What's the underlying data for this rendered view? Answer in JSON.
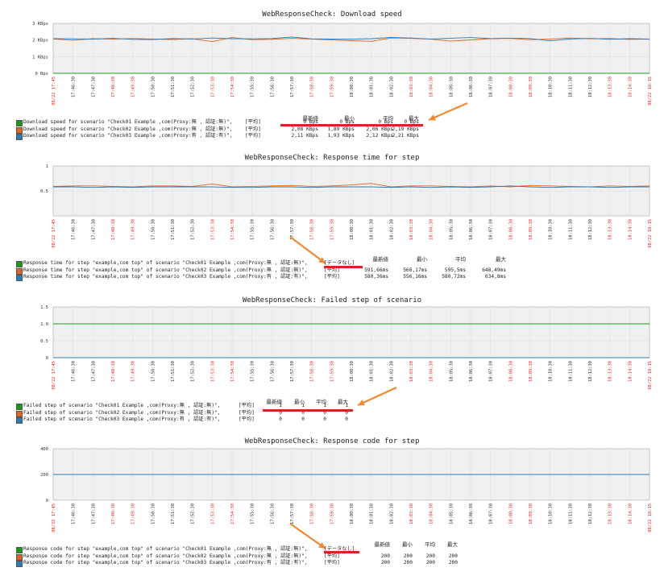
{
  "colors": {
    "green": "#1a9a1a",
    "red": "#e8621e",
    "blue": "#2b7bb9",
    "grid": "#c8c8c8",
    "plot_bg": "#f0f0f0",
    "axis_label": "#e03030",
    "highlight": "#e02020",
    "arrow": "#f08a30"
  },
  "time_labels": [
    "17:46:30",
    "17:47:30",
    "17:48:30",
    "17:49:30",
    "17:50:30",
    "17:51:30",
    "17:52:30",
    "17:53:30",
    "17:54:30",
    "17:55:30",
    "17:56:30",
    "17:57:30",
    "17:58:30",
    "17:59:30",
    "18:00:30",
    "18:01:30",
    "18:02:30",
    "18:03:30",
    "18:04:30",
    "18:05:30",
    "18:06:30",
    "18:07:30",
    "18:08:30",
    "18:09:30",
    "18:10:30",
    "18:11:30",
    "18:12:30",
    "18:13:30",
    "18:14:30"
  ],
  "time_start": "08/22 17:45",
  "time_end": "08/22 18:15",
  "chart_data": [
    {
      "type": "line",
      "title": "WebResponseCheck: Download speed",
      "yticks": [
        "0 Bps",
        "1 KBps",
        "2 KBps",
        "3 KBps"
      ],
      "ylim": [
        0,
        3000
      ],
      "series": [
        {
          "name": "Download speed for scenario \"Check01 Example ,com(Proxy:無 , 認証:無)\",",
          "color": "#1a9a1a",
          "agg": "[平均]",
          "stats": [
            "0 Bps",
            "0 Bps",
            "0 Bps",
            "0 Bps"
          ],
          "values": [
            0,
            0,
            0,
            0,
            0,
            0,
            0,
            0,
            0,
            0,
            0,
            0,
            0,
            0,
            0,
            0,
            0,
            0,
            0,
            0,
            0,
            0,
            0,
            0,
            0,
            0,
            0,
            0,
            0,
            0,
            0
          ]
        },
        {
          "name": "Download speed for scenario \"Check02 Example ,com(Proxy:無 , 認証:無)\",",
          "color": "#e8621e",
          "agg": "[平均]",
          "stats": [
            "2,08 KBps",
            "1,89 KBps",
            "2,06 KBps",
            "2,19 KBps"
          ],
          "values": [
            2060,
            1990,
            2080,
            2050,
            2090,
            2060,
            2030,
            2080,
            1900,
            2150,
            2020,
            2040,
            2100,
            2060,
            2010,
            1960,
            1920,
            2120,
            2100,
            2050,
            1930,
            2010,
            2080,
            2100,
            2020,
            2060,
            2120,
            2080,
            2090,
            2040,
            2050
          ]
        },
        {
          "name": "Download speed for scenario \"Check03 Example ,com(Proxy:有 , 認証:有)\",",
          "color": "#2b7bb9",
          "agg": "[平均]",
          "stats": [
            "2,11 KBps",
            "1,93 KBps",
            "2,12 KBps",
            "2,21 KBps"
          ],
          "values": [
            2080,
            2070,
            2050,
            2100,
            2040,
            2030,
            2090,
            2060,
            2120,
            2080,
            2070,
            2090,
            2180,
            2070,
            2060,
            2050,
            2080,
            2160,
            2120,
            2060,
            2110,
            2150,
            2090,
            2110,
            2090,
            1950,
            2060,
            2100,
            2040,
            2080,
            2060
          ]
        }
      ]
    },
    {
      "type": "line",
      "title": "WebResponseCheck: Response time for step",
      "yticks": [
        "0.5",
        "1"
      ],
      "ylim": [
        0,
        1
      ],
      "series": [
        {
          "name": "Response time for step \"example,com top\" of scenario \"Check01 Example ,com(Proxy:無 , 認証:無)\",",
          "color": "#1a9a1a",
          "agg": "[データなし]",
          "stats": [
            "",
            "",
            "",
            ""
          ],
          "values": []
        },
        {
          "name": "Response time for step \"example,com top\" of scenario \"Check02 Example ,com(Proxy:無 , 認証:無)\",",
          "color": "#e8621e",
          "agg": "[平均]",
          "stats": [
            "591,66ms",
            "568,17ms",
            "595,5ms",
            "648,49ms"
          ],
          "values": [
            0.59,
            0.6,
            0.6,
            0.59,
            0.58,
            0.6,
            0.6,
            0.59,
            0.64,
            0.58,
            0.59,
            0.6,
            0.61,
            0.59,
            0.6,
            0.62,
            0.65,
            0.58,
            0.6,
            0.6,
            0.59,
            0.58,
            0.6,
            0.58,
            0.61,
            0.6,
            0.59,
            0.58,
            0.6,
            0.59,
            0.6
          ]
        },
        {
          "name": "Response time for step \"example,com top\" of scenario \"Check03 Example ,com(Proxy:有 , 認証:有)\",",
          "color": "#2b7bb9",
          "agg": "[平均]",
          "stats": [
            "580,36ms",
            "556,16ms",
            "580,72ms",
            "634,8ms"
          ],
          "values": [
            0.58,
            0.58,
            0.57,
            0.58,
            0.57,
            0.58,
            0.58,
            0.58,
            0.58,
            0.57,
            0.57,
            0.58,
            0.58,
            0.57,
            0.58,
            0.58,
            0.58,
            0.57,
            0.58,
            0.57,
            0.58,
            0.57,
            0.58,
            0.6,
            0.58,
            0.57,
            0.58,
            0.58,
            0.57,
            0.58,
            0.58
          ]
        }
      ]
    },
    {
      "type": "line",
      "title": "WebResponseCheck: Failed step of scenario",
      "yticks": [
        "0",
        "0.5",
        "1.0",
        "1.5"
      ],
      "ylim": [
        0,
        1.5
      ],
      "series": [
        {
          "name": "Failed step of scenario \"Check01 Example ,com(Proxy:無 , 認証:無)\",",
          "color": "#1a9a1a",
          "agg": "[平均]",
          "stats": [
            "1",
            "1",
            "1",
            "1"
          ],
          "values": [
            1,
            1,
            1,
            1,
            1,
            1,
            1,
            1,
            1,
            1,
            1,
            1,
            1,
            1,
            1,
            1,
            1,
            1,
            1,
            1,
            1,
            1,
            1,
            1,
            1,
            1,
            1,
            1,
            1,
            1,
            1
          ]
        },
        {
          "name": "Failed step of scenario \"Check02 Example ,com(Proxy:無 , 認証:無)\",",
          "color": "#e8621e",
          "agg": "[平均]",
          "stats": [
            "0",
            "0",
            "0",
            "0"
          ],
          "values": [
            0,
            0,
            0,
            0,
            0,
            0,
            0,
            0,
            0,
            0,
            0,
            0,
            0,
            0,
            0,
            0,
            0,
            0,
            0,
            0,
            0,
            0,
            0,
            0,
            0,
            0,
            0,
            0,
            0,
            0,
            0
          ]
        },
        {
          "name": "Failed step of scenario \"Check03 Example ,com(Proxy:有 , 認証:有)\",",
          "color": "#2b7bb9",
          "agg": "[平均]",
          "stats": [
            "0",
            "0",
            "0",
            "0"
          ],
          "values": [
            0,
            0,
            0,
            0,
            0,
            0,
            0,
            0,
            0,
            0,
            0,
            0,
            0,
            0,
            0,
            0,
            0,
            0,
            0,
            0,
            0,
            0,
            0,
            0,
            0,
            0,
            0,
            0,
            0,
            0,
            0
          ]
        }
      ]
    },
    {
      "type": "line",
      "title": "WebResponseCheck: Response code for step",
      "yticks": [
        "0",
        "200",
        "400"
      ],
      "ylim": [
        0,
        400
      ],
      "series": [
        {
          "name": "Response code for step \"example,com top\" of scenario \"Check01 Example ,com(Proxy:無 , 認証:無)\",",
          "color": "#1a9a1a",
          "agg": "[データなし]",
          "stats": [
            "",
            "",
            "",
            ""
          ],
          "values": []
        },
        {
          "name": "Response code for step \"example,com top\" of scenario \"Check02 Example ,com(Proxy:無 , 認証:無)\",",
          "color": "#e8621e",
          "agg": "[平均]",
          "stats": [
            "200",
            "200",
            "200",
            "200"
          ],
          "values": [
            200,
            200,
            200,
            200,
            200,
            200,
            200,
            200,
            200,
            200,
            200,
            200,
            200,
            200,
            200,
            200,
            200,
            200,
            200,
            200,
            200,
            200,
            200,
            200,
            200,
            200,
            200,
            200,
            200,
            200,
            200
          ]
        },
        {
          "name": "Response code for step \"example,com top\" of scenario \"Check03 Example ,com(Proxy:有 , 認証:有)\",",
          "color": "#2b7bb9",
          "agg": "[平均]",
          "stats": [
            "200",
            "200",
            "200",
            "200"
          ],
          "values": [
            200,
            200,
            200,
            200,
            200,
            200,
            200,
            200,
            200,
            200,
            200,
            200,
            200,
            200,
            200,
            200,
            200,
            200,
            200,
            200,
            200,
            200,
            200,
            200,
            200,
            200,
            200,
            200,
            200,
            200,
            200
          ]
        }
      ]
    }
  ],
  "stat_headers": [
    "最新値",
    "最小",
    "平均",
    "最大"
  ]
}
